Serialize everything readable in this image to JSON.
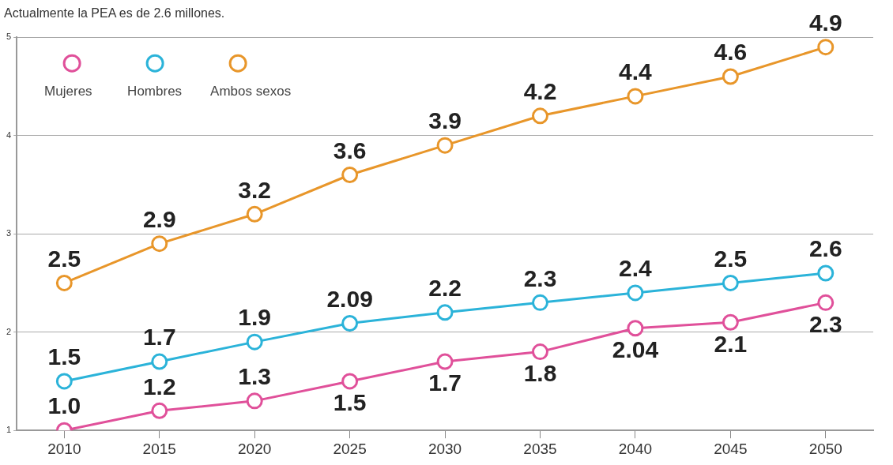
{
  "chart_data": {
    "type": "line",
    "subtitle": "Actualmente la PEA es de 2.6 millones.",
    "categories": [
      "2010",
      "2015",
      "2020",
      "2025",
      "2030",
      "2035",
      "2040",
      "2045",
      "2050"
    ],
    "series": [
      {
        "name": "Mujeres",
        "color": "#e0509a",
        "values": [
          1.0,
          1.2,
          1.3,
          1.5,
          1.7,
          1.8,
          2.04,
          2.1,
          2.3
        ],
        "value_labels": [
          "1.0",
          "1.2",
          "1.3",
          "1.5",
          "1.7",
          "1.8",
          "2.04",
          "2.1",
          "2.3"
        ]
      },
      {
        "name": "Hombres",
        "color": "#2bb3d9",
        "values": [
          1.5,
          1.7,
          1.9,
          2.09,
          2.2,
          2.3,
          2.4,
          2.5,
          2.6
        ],
        "value_labels": [
          "1.5",
          "1.7",
          "1.9",
          "2.09",
          "2.2",
          "2.3",
          "2.4",
          "2.5",
          "2.6"
        ]
      },
      {
        "name": "Ambos sexos",
        "color": "#e8962a",
        "values": [
          2.5,
          2.9,
          3.2,
          3.6,
          3.9,
          4.2,
          4.4,
          4.6,
          4.9
        ],
        "value_labels": [
          "2.5",
          "2.9",
          "3.2",
          "3.6",
          "3.9",
          "4.2",
          "4.4",
          "4.6",
          "4.9"
        ]
      }
    ],
    "ylim": [
      1,
      5
    ],
    "yticks": [
      1,
      2,
      3,
      4,
      5
    ],
    "grid": "y",
    "legend": "top left",
    "marker": "circle",
    "line_style": "solid"
  }
}
